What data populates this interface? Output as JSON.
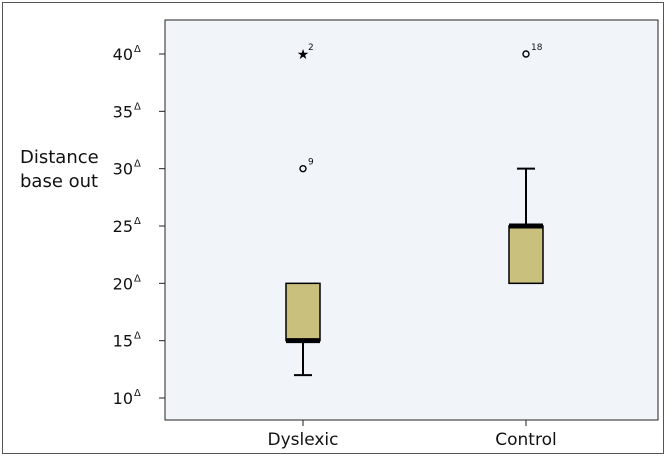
{
  "chart_data": {
    "type": "boxplot",
    "ylabel_lines": [
      "Distance",
      "base out"
    ],
    "y_unit_symbol": "Δ",
    "ylim": [
      9,
      41
    ],
    "yticks": [
      10,
      15,
      20,
      25,
      30,
      35,
      40
    ],
    "categories": [
      "Dyslexic",
      "Control"
    ],
    "boxes": [
      {
        "category": "Dyslexic",
        "whisker_low": 12,
        "q1": 15,
        "median": 15,
        "q3": 20,
        "whisker_high": 20,
        "outliers": [
          {
            "value": 30,
            "marker": "circle",
            "label": "9"
          },
          {
            "value": 40,
            "marker": "star",
            "label": "2"
          }
        ]
      },
      {
        "category": "Control",
        "whisker_low": 20,
        "q1": 20,
        "median": 25,
        "q3": 25,
        "whisker_high": 30,
        "outliers": [
          {
            "value": 40,
            "marker": "circle",
            "label": "18"
          }
        ]
      }
    ],
    "colors": {
      "box_fill": "#c9c07e",
      "plot_bg": "#f1f5fa",
      "stroke": "#000000"
    }
  }
}
